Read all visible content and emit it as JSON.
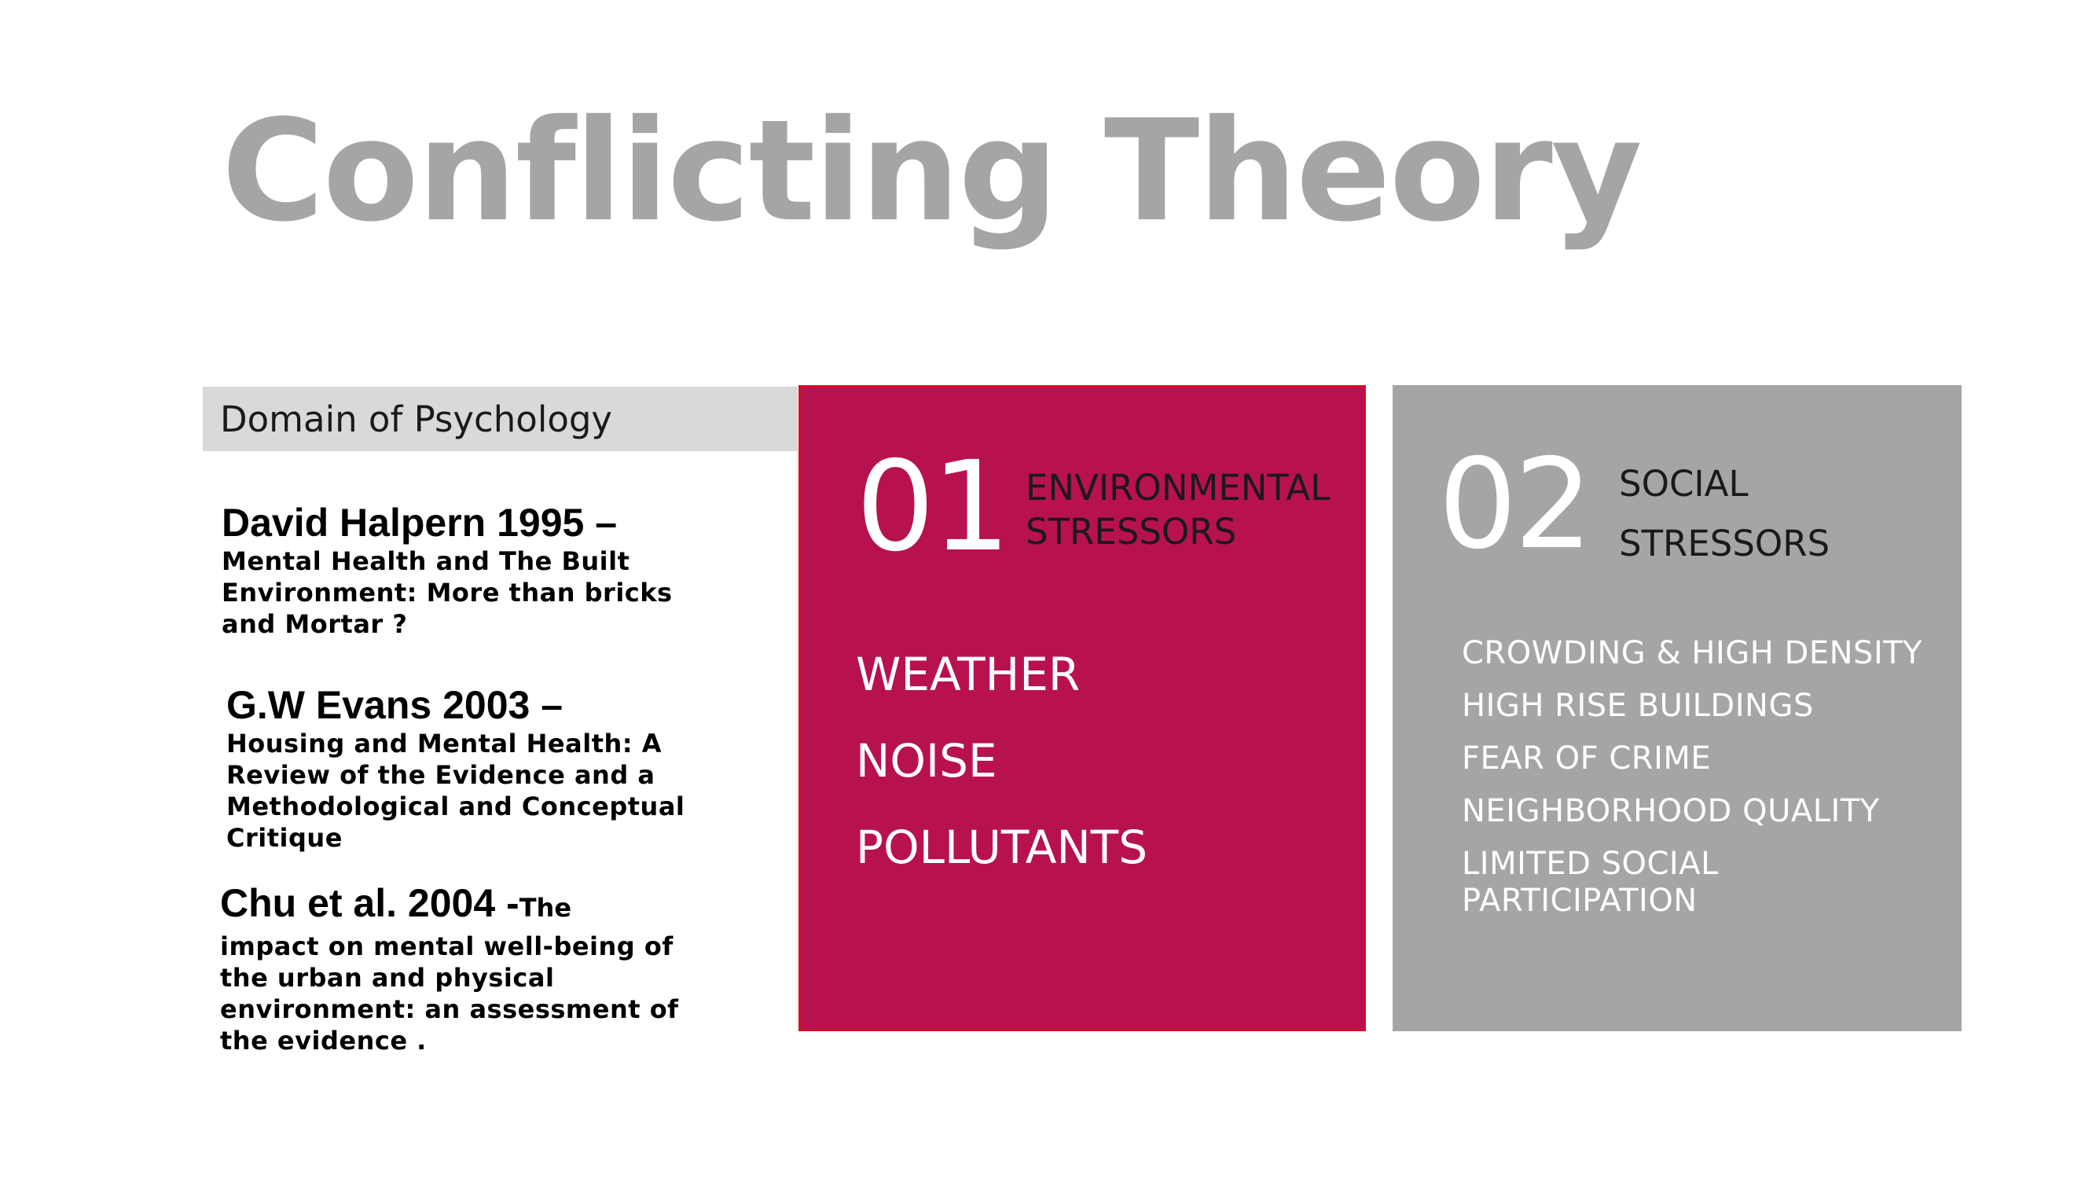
{
  "slide": {
    "title": "Conflicting Theory"
  },
  "domain": {
    "label": "Domain of Psychology"
  },
  "references": [
    {
      "head": "David Halpern 1995 –",
      "body": "Mental Health and The Built Environment: More than bricks and Mortar ?"
    },
    {
      "head": "G.W Evans 2003 –",
      "body": "Housing and Mental Health: A Review of the Evidence and a Methodological and Conceptual Critique"
    },
    {
      "head": "Chu et al. 2004 -",
      "inline": "The",
      "body": "impact on mental well-being of the urban and physical environment: an assessment of the evidence ."
    }
  ],
  "panels": {
    "environmental": {
      "number": "01",
      "heading_line1": "ENVIRONMENTAL",
      "heading_line2": "STRESSORS",
      "items": [
        "WEATHER",
        "NOISE",
        "POLLUTANTS"
      ],
      "color": "#b81150"
    },
    "social": {
      "number": "02",
      "heading_line1": "SOCIAL",
      "heading_line2": "STRESSORS",
      "items": [
        "CROWDING & HIGH DENSITY",
        "HIGH RISE BUILDINGS",
        "FEAR OF CRIME",
        "NEIGHBORHOOD QUALITY",
        "LIMITED SOCIAL PARTICIPATION"
      ],
      "color": "#a5a5a5"
    }
  },
  "colors": {
    "title": "#a5a5a5",
    "domain_bar": "#d9d9d9",
    "text_dark": "#1a1a1a"
  }
}
